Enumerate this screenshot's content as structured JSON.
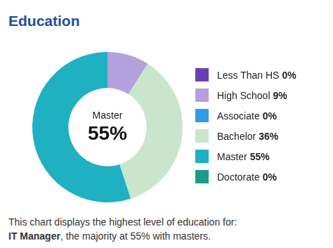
{
  "chart_data": {
    "type": "doughnut",
    "title": "Education",
    "categories": [
      "Less Than HS",
      "High School",
      "Associate",
      "Bachelor",
      "Master",
      "Doctorate"
    ],
    "values": [
      0,
      9,
      0,
      36,
      55,
      0
    ],
    "value_labels": [
      "0%",
      "9%",
      "0%",
      "36%",
      "55%",
      "0%"
    ],
    "colors": [
      "#6a3fb5",
      "#b3a1dd",
      "#2f9be8",
      "#c9e6cc",
      "#1fb0c2",
      "#1a9a8a"
    ],
    "legend": "right",
    "annotations": [
      {
        "label": "Master",
        "value": 55,
        "value_label": "55%"
      }
    ],
    "caption": {
      "text_before": "This chart displays the highest level of education for:",
      "bold": "IT Manager",
      "text_after": ", the majority at 55% with masters."
    }
  }
}
